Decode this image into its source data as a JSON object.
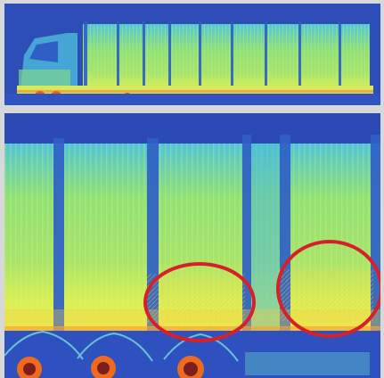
{
  "image": {
    "panels": [
      {
        "name": "overview-scan",
        "vehicle": "truck",
        "colormap": [
          "#2b49b3",
          "#2f74d6",
          "#44c4c9",
          "#8fe07c",
          "#e9f34a",
          "#ff9f2b",
          "#f04a1e"
        ]
      },
      {
        "name": "detail-scan",
        "vehicle": "trailer-closeup",
        "highlight_color": "#d6212a",
        "highlight_count": 2
      }
    ]
  }
}
